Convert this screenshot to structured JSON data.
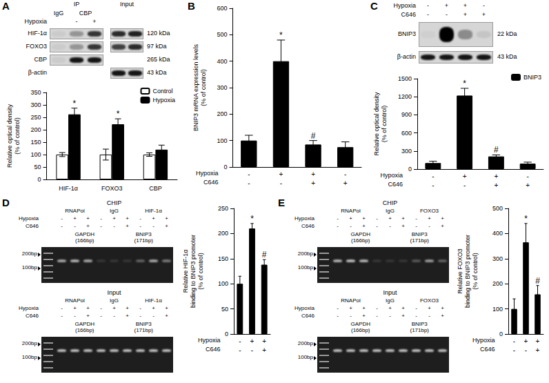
{
  "panels": [
    {
      "letter": "A",
      "blot": {
        "ip_label": "IP",
        "input_label": "Input",
        "ip_groups": [
          {
            "name": "IgG",
            "lanes": 1
          },
          {
            "name": "CBP",
            "lanes": 2
          }
        ],
        "condition": "Hypoxia",
        "ip_signs": [
          null,
          "-",
          "+"
        ],
        "rows": [
          {
            "name": "HIF-1α",
            "size": "120 kDa",
            "ip": [
              0.05,
              0.3,
              0.75
            ],
            "input": [
              0.8,
              0.85
            ]
          },
          {
            "name": "FOXO3",
            "size": "97 kDa",
            "ip": [
              0.05,
              0.3,
              0.75
            ],
            "input": [
              0.7,
              0.8
            ]
          },
          {
            "name": "CBP",
            "size": "265 kDa",
            "ip": [
              0.05,
              0.9,
              0.9
            ],
            "input": null
          },
          {
            "name": "β-actin",
            "size": "43 kDa",
            "ip": null,
            "input": [
              0.9,
              0.9
            ]
          }
        ]
      }
    },
    {
      "letter": "B"
    },
    {
      "letter": "C",
      "blot": {
        "conditions": [
          {
            "name": "Hypoxia",
            "signs": [
              "-",
              "+",
              "+",
              "-"
            ]
          },
          {
            "name": "C646",
            "signs": [
              "-",
              "-",
              "+",
              "+"
            ]
          }
        ],
        "rows": [
          {
            "name": "BNIP3",
            "size": "22 kDa",
            "bands": [
              0.03,
              1,
              0.35,
              0.08
            ]
          },
          {
            "name": "β-actin",
            "size": "43 kDa",
            "bands": [
              0.9,
              0.9,
              0.9,
              0.9
            ]
          }
        ]
      }
    },
    {
      "letter": "D",
      "gels": [
        {
          "label": "CHIP",
          "groups": [
            "RNAPol",
            "IgG",
            "HIF-1α"
          ],
          "conditions": [
            {
              "name": "Hypoxia",
              "signs": [
                "-",
                "+",
                "+",
                "-",
                "+",
                "+",
                "-",
                "+",
                "+"
              ]
            },
            {
              "name": "C646",
              "signs": [
                "-",
                "-",
                "+",
                "-",
                "-",
                "+",
                "-",
                "-",
                "+"
              ]
            }
          ],
          "genes": [
            {
              "name": "GAPDH",
              "size": "(166bp)"
            },
            {
              "name": "BNIP3",
              "size": "(171bp)"
            }
          ],
          "ladder": [
            "200bp",
            "100bp"
          ],
          "bands": [
            0.6,
            0.65,
            0.6,
            0.1,
            0.1,
            0.1,
            0.3,
            0.6,
            0.4
          ]
        },
        {
          "label": "Input",
          "groups": [
            "RNAPol",
            "IgG",
            "HIF-1α"
          ],
          "conditions": [
            {
              "name": "Hypoxia",
              "signs": [
                "-",
                "+",
                "+",
                "-",
                "+",
                "+",
                "-",
                "+",
                "+"
              ]
            },
            {
              "name": "C646",
              "signs": [
                "-",
                "-",
                "+",
                "-",
                "-",
                "+",
                "-",
                "-",
                "+"
              ]
            }
          ],
          "genes": [
            {
              "name": "GAPDH",
              "size": "(166bp)"
            },
            {
              "name": "BNIP3",
              "size": "(171bp)"
            }
          ],
          "ladder": [
            "200bp",
            "100bp"
          ],
          "bands": [
            0.7,
            0.7,
            0.7,
            0.7,
            0.7,
            0.7,
            0.7,
            0.7,
            0.7
          ]
        }
      ]
    },
    {
      "letter": "E",
      "gels": [
        {
          "label": "CHIP",
          "groups": [
            "RNAPol",
            "IgG",
            "FOXO3"
          ],
          "conditions": [
            {
              "name": "Hypoxia",
              "signs": [
                "-",
                "+",
                "+",
                "-",
                "+",
                "+",
                "-",
                "+",
                "+"
              ]
            },
            {
              "name": "C646",
              "signs": [
                "-",
                "-",
                "+",
                "-",
                "-",
                "+",
                "-",
                "-",
                "+"
              ]
            }
          ],
          "genes": [
            {
              "name": "GAPDH",
              "size": "(166bp)"
            },
            {
              "name": "BNIP3",
              "size": "(171bp)"
            }
          ],
          "ladder": [
            "200bp",
            "100bp"
          ],
          "bands": [
            0.65,
            0.7,
            0.65,
            0.1,
            0.1,
            0.1,
            0.25,
            0.55,
            0.3
          ]
        },
        {
          "label": "Input",
          "groups": [
            "RNAPol",
            "IgG",
            "FOXO3"
          ],
          "conditions": [
            {
              "name": "Hypoxia",
              "signs": [
                "-",
                "+",
                "+",
                "-",
                "+",
                "+",
                "-",
                "+",
                "+"
              ]
            },
            {
              "name": "C646",
              "signs": [
                "-",
                "-",
                "+",
                "-",
                "-",
                "+",
                "-",
                "-",
                "+"
              ]
            }
          ],
          "genes": [
            {
              "name": "GAPDH",
              "size": "(166bp)"
            },
            {
              "name": "BNIP3",
              "size": "(171bp)"
            }
          ],
          "ladder": [
            "200bp",
            "100bp"
          ],
          "bands": [
            0.7,
            0.7,
            0.7,
            0.7,
            0.7,
            0.7,
            0.7,
            0.7,
            0.7
          ]
        }
      ]
    }
  ],
  "chart_data": [
    {
      "type": "bar",
      "categories": [
        "HIF-1α",
        "FOXO3",
        "CBP"
      ],
      "y_label": "Relative optical density\n(% of control)",
      "ylim": [
        0,
        350
      ],
      "yticks": [
        0,
        50,
        100,
        150,
        200,
        250,
        300,
        350
      ],
      "grid": false,
      "legend": "top-right",
      "series": [
        {
          "name": "Control",
          "color": "#ffffff",
          "values": [
            100,
            100,
            100
          ],
          "errors": [
            8,
            22,
            7
          ],
          "significance": [
            null,
            null,
            null
          ]
        },
        {
          "name": "Hypoxia",
          "color": "#000000",
          "values": [
            262,
            222,
            120
          ],
          "errors": [
            25,
            22,
            18
          ],
          "significance": [
            "*",
            "*",
            null
          ]
        }
      ]
    },
    {
      "type": "bar",
      "categories": [
        null,
        null,
        null,
        null
      ],
      "y_label": "BNIP3 mRNA expression levels\n(% of control)",
      "ylim": [
        0,
        600
      ],
      "yticks": [
        0,
        100,
        200,
        300,
        400,
        500,
        600
      ],
      "grid": false,
      "color": "#000000",
      "values": [
        100,
        400,
        85,
        75
      ],
      "errors": [
        20,
        80,
        15,
        20
      ],
      "significance": [
        null,
        "*",
        "#",
        null
      ],
      "conditions": [
        {
          "name": "Hypoxia",
          "signs": [
            "-",
            "+",
            "+",
            "-"
          ]
        },
        {
          "name": "C646",
          "signs": [
            "-",
            "-",
            "+",
            "+"
          ]
        }
      ]
    },
    {
      "type": "bar",
      "categories": [
        null,
        null,
        null,
        null
      ],
      "y_label": "Relative optical density\n(% of control)",
      "ylim": [
        0,
        1500
      ],
      "yticks": [
        0,
        300,
        600,
        900,
        1200,
        1500
      ],
      "grid": false,
      "legend": "top-right",
      "series": [
        {
          "name": "BNIP3",
          "color": "#000000",
          "values": [
            100,
            1220,
            210,
            90
          ],
          "errors": [
            30,
            120,
            25,
            25
          ],
          "significance": [
            null,
            "*",
            "#",
            null
          ]
        }
      ],
      "conditions": [
        {
          "name": "Hypoxia",
          "signs": [
            "-",
            "+",
            "+",
            "-"
          ]
        },
        {
          "name": "C646",
          "signs": [
            "-",
            "-",
            "+",
            "+"
          ]
        }
      ]
    },
    {
      "type": "bar",
      "categories": [
        null,
        null,
        null
      ],
      "y_label": "Relative HIF-1α\nbinding to BNIP3 promoter\n(% of control)",
      "ylim": [
        0,
        250
      ],
      "yticks": [
        0,
        50,
        100,
        150,
        200,
        250
      ],
      "grid": false,
      "color": "#000000",
      "values": [
        100,
        210,
        138
      ],
      "errors": [
        15,
        10,
        10
      ],
      "significance": [
        null,
        "*",
        "#"
      ],
      "conditions": [
        {
          "name": "Hypoxia",
          "signs": [
            "-",
            "+",
            "+"
          ]
        },
        {
          "name": "C646",
          "signs": [
            "-",
            "-",
            "+"
          ]
        }
      ]
    },
    {
      "type": "bar",
      "categories": [
        null,
        null,
        null
      ],
      "y_label": "Relative FOXO3\nbinding to BNIP3 promoter\n(% of control)",
      "ylim": [
        0,
        500
      ],
      "yticks": [
        0,
        100,
        200,
        300,
        400,
        500
      ],
      "grid": false,
      "color": "#000000",
      "values": [
        100,
        365,
        158
      ],
      "errors": [
        40,
        75,
        35
      ],
      "significance": [
        null,
        "*",
        "#"
      ],
      "conditions": [
        {
          "name": "Hypoxia",
          "signs": [
            "-",
            "+",
            "+"
          ]
        },
        {
          "name": "C646",
          "signs": [
            "-",
            "-",
            "+"
          ]
        }
      ]
    }
  ]
}
